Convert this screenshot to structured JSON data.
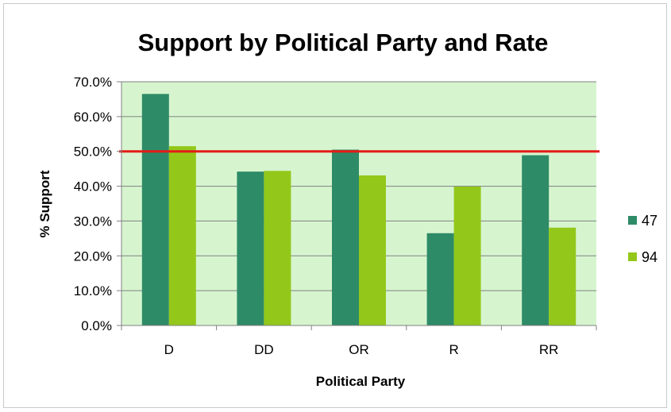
{
  "chart_data": {
    "type": "bar",
    "title": "Support by Political Party and Rate",
    "xlabel": "Political Party",
    "ylabel": "% Support",
    "categories": [
      "D",
      "DD",
      "OR",
      "R",
      "RR"
    ],
    "series": [
      {
        "name": "47",
        "values": [
          66.5,
          44.2,
          50.5,
          26.5,
          48.9
        ],
        "color": "#2e8b67"
      },
      {
        "name": "94",
        "values": [
          51.5,
          44.4,
          43.1,
          39.9,
          28.1
        ],
        "color": "#93c81a"
      }
    ],
    "ylim": [
      0,
      70
    ],
    "yticks": [
      "0.0%",
      "10.0%",
      "20.0%",
      "30.0%",
      "40.0%",
      "50.0%",
      "60.0%",
      "70.0%"
    ],
    "grid": true,
    "plot_background": "#d6f5cf",
    "reference_line": {
      "value": 50,
      "color": "#e41b17"
    },
    "legend_position": "right"
  }
}
